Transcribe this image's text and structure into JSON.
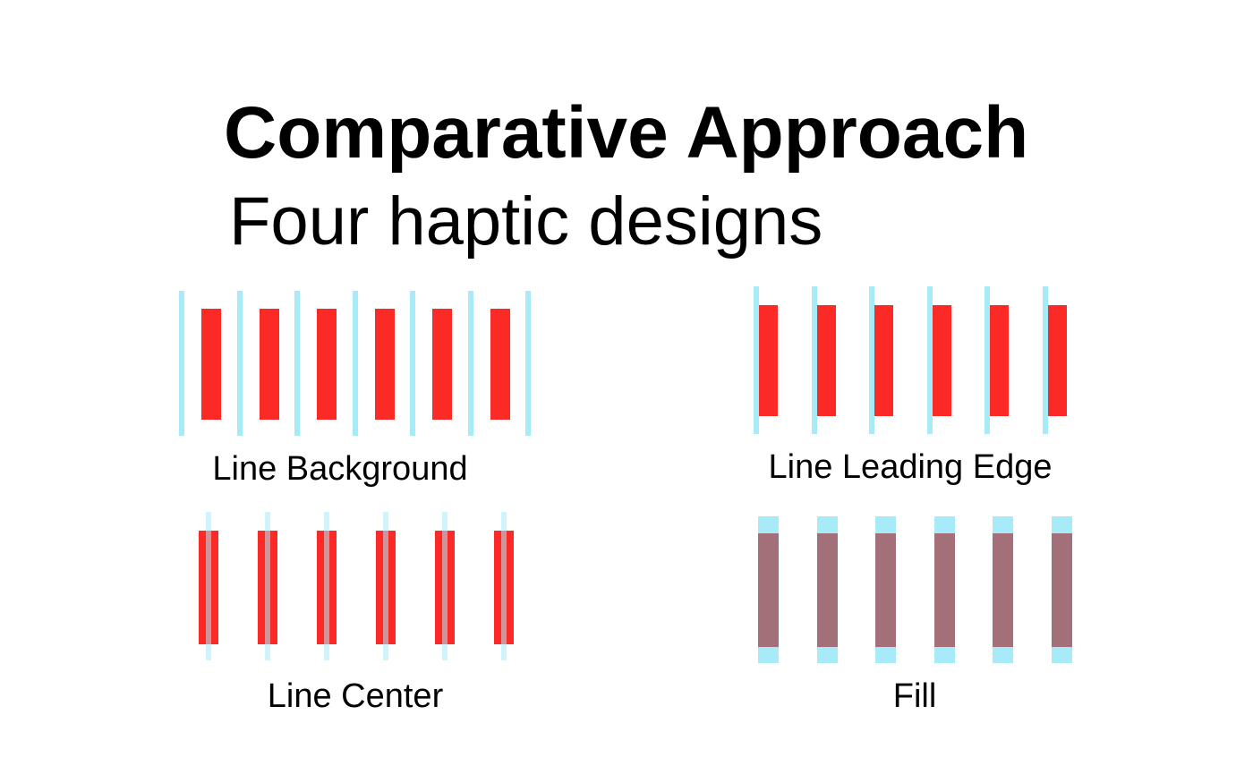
{
  "title": "Comparative Approach",
  "subtitle": "Four haptic designs",
  "designs": {
    "line_background": {
      "label": "Line Background"
    },
    "line_leading_edge": {
      "label": "Line Leading Edge"
    },
    "line_center": {
      "label": "Line Center"
    },
    "fill": {
      "label": "Fill"
    }
  },
  "colors": {
    "bar": "#fc2a27",
    "line": "#a7ebf9",
    "fill_bar": "#a3707a"
  }
}
